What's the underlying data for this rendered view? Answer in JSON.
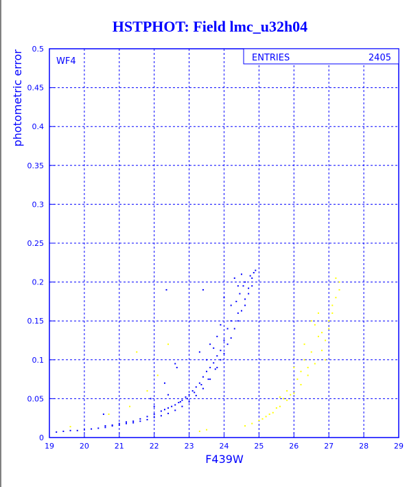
{
  "chart_data": {
    "type": "scatter",
    "title": "HSTPHOT: Field lmc_u32h04",
    "xlabel": "F439W",
    "ylabel": "photometric error",
    "xlim": [
      19,
      29
    ],
    "ylim": [
      0,
      0.5
    ],
    "xticks": [
      "19",
      "20",
      "21",
      "22",
      "23",
      "24",
      "25",
      "26",
      "27",
      "28",
      "29"
    ],
    "yticks": [
      "0",
      "0.05",
      "0.1",
      "0.15",
      "0.2",
      "0.25",
      "0.3",
      "0.35",
      "0.4",
      "0.45",
      "0.5"
    ],
    "grid": true,
    "chip_label": "WF4",
    "stats_box": {
      "label": "ENTRIES",
      "value": "2405"
    },
    "series": [
      {
        "color": "#0000ff",
        "points": [
          [
            19.2,
            0.007
          ],
          [
            19.4,
            0.008
          ],
          [
            19.6,
            0.009
          ],
          [
            19.8,
            0.009
          ],
          [
            20.0,
            0.01
          ],
          [
            20.2,
            0.011
          ],
          [
            20.4,
            0.012
          ],
          [
            20.6,
            0.013
          ],
          [
            20.8,
            0.015
          ],
          [
            21.0,
            0.016
          ],
          [
            21.2,
            0.018
          ],
          [
            21.4,
            0.019
          ],
          [
            21.6,
            0.021
          ],
          [
            21.8,
            0.023
          ],
          [
            22.0,
            0.026
          ],
          [
            22.2,
            0.028
          ],
          [
            22.4,
            0.031
          ],
          [
            22.6,
            0.035
          ],
          [
            22.8,
            0.04
          ],
          [
            23.0,
            0.046
          ],
          [
            23.2,
            0.054
          ],
          [
            23.4,
            0.063
          ],
          [
            23.6,
            0.075
          ],
          [
            23.8,
            0.09
          ],
          [
            24.0,
            0.108
          ],
          [
            24.2,
            0.128
          ],
          [
            24.4,
            0.15
          ],
          [
            24.5,
            0.163
          ],
          [
            24.6,
            0.178
          ],
          [
            24.7,
            0.192
          ],
          [
            24.8,
            0.205
          ],
          [
            24.85,
            0.212
          ],
          [
            24.9,
            0.215
          ],
          [
            24.75,
            0.208
          ],
          [
            24.55,
            0.195
          ],
          [
            24.45,
            0.185
          ],
          [
            24.35,
            0.175
          ],
          [
            24.2,
            0.15
          ],
          [
            24.1,
            0.14
          ],
          [
            24.0,
            0.125
          ],
          [
            23.9,
            0.112
          ],
          [
            23.8,
            0.105
          ],
          [
            23.7,
            0.096
          ],
          [
            23.6,
            0.09
          ],
          [
            23.5,
            0.085
          ],
          [
            23.4,
            0.078
          ],
          [
            23.3,
            0.07
          ],
          [
            23.2,
            0.065
          ],
          [
            23.1,
            0.06
          ],
          [
            23.0,
            0.055
          ],
          [
            22.9,
            0.052
          ],
          [
            22.8,
            0.048
          ],
          [
            22.7,
            0.045
          ],
          [
            22.6,
            0.042
          ],
          [
            22.5,
            0.04
          ],
          [
            22.4,
            0.038
          ],
          [
            22.3,
            0.036
          ],
          [
            22.2,
            0.034
          ],
          [
            22.0,
            0.03
          ],
          [
            21.8,
            0.027
          ],
          [
            21.6,
            0.024
          ],
          [
            21.4,
            0.021
          ],
          [
            21.2,
            0.02
          ],
          [
            21.0,
            0.018
          ],
          [
            20.8,
            0.016
          ],
          [
            20.6,
            0.015
          ],
          [
            22.6,
            0.095
          ],
          [
            22.65,
            0.09
          ],
          [
            23.3,
            0.11
          ],
          [
            22.4,
            0.055
          ],
          [
            22.3,
            0.07
          ],
          [
            21.9,
            0.05
          ],
          [
            22.0,
            0.04
          ],
          [
            20.55,
            0.03
          ],
          [
            23.6,
            0.12
          ],
          [
            23.9,
            0.145
          ],
          [
            23.5,
            0.1
          ],
          [
            24.0,
            0.18
          ],
          [
            24.3,
            0.205
          ],
          [
            24.6,
            0.2
          ],
          [
            24.7,
            0.185
          ],
          [
            24.4,
            0.195
          ],
          [
            24.2,
            0.17
          ],
          [
            23.8,
            0.13
          ],
          [
            23.7,
            0.115
          ],
          [
            22.35,
            0.19
          ],
          [
            23.4,
            0.19
          ],
          [
            24.5,
            0.21
          ],
          [
            24.8,
            0.195
          ],
          [
            24.6,
            0.17
          ],
          [
            24.4,
            0.16
          ],
          [
            24.3,
            0.14
          ],
          [
            24.1,
            0.12
          ],
          [
            23.9,
            0.1
          ],
          [
            23.75,
            0.088
          ],
          [
            23.55,
            0.075
          ],
          [
            23.35,
            0.068
          ],
          [
            23.15,
            0.058
          ],
          [
            22.95,
            0.05
          ],
          [
            22.75,
            0.046
          ]
        ]
      },
      {
        "color": "#ffff00",
        "points": [
          [
            24.6,
            0.015
          ],
          [
            24.8,
            0.018
          ],
          [
            25.0,
            0.022
          ],
          [
            25.2,
            0.027
          ],
          [
            25.4,
            0.032
          ],
          [
            25.6,
            0.04
          ],
          [
            25.8,
            0.048
          ],
          [
            26.0,
            0.057
          ],
          [
            26.2,
            0.068
          ],
          [
            26.4,
            0.08
          ],
          [
            26.6,
            0.095
          ],
          [
            26.8,
            0.112
          ],
          [
            26.9,
            0.125
          ],
          [
            27.0,
            0.14
          ],
          [
            27.1,
            0.16
          ],
          [
            27.2,
            0.18
          ],
          [
            27.3,
            0.2
          ],
          [
            27.2,
            0.205
          ],
          [
            27.3,
            0.19
          ],
          [
            27.0,
            0.15
          ],
          [
            26.7,
            0.13
          ],
          [
            26.5,
            0.11
          ],
          [
            26.3,
            0.1
          ],
          [
            26.1,
            0.075
          ],
          [
            25.9,
            0.055
          ],
          [
            25.7,
            0.05
          ],
          [
            25.5,
            0.038
          ],
          [
            25.3,
            0.03
          ],
          [
            25.1,
            0.024
          ],
          [
            26.6,
            0.145
          ],
          [
            26.8,
            0.135
          ],
          [
            26.4,
            0.09
          ],
          [
            26.2,
            0.085
          ],
          [
            27.1,
            0.17
          ],
          [
            26.9,
            0.1
          ],
          [
            21.3,
            0.04
          ],
          [
            21.5,
            0.11
          ],
          [
            21.8,
            0.06
          ],
          [
            22.1,
            0.08
          ],
          [
            22.4,
            0.12
          ],
          [
            20.7,
            0.03
          ],
          [
            19.6,
            0.014
          ],
          [
            23.5,
            0.01
          ],
          [
            23.3,
            0.008
          ],
          [
            26.0,
            0.09
          ],
          [
            26.7,
            0.16
          ],
          [
            26.5,
            0.15
          ],
          [
            26.3,
            0.12
          ],
          [
            25.8,
            0.06
          ],
          [
            25.6,
            0.052
          ]
        ]
      }
    ]
  }
}
